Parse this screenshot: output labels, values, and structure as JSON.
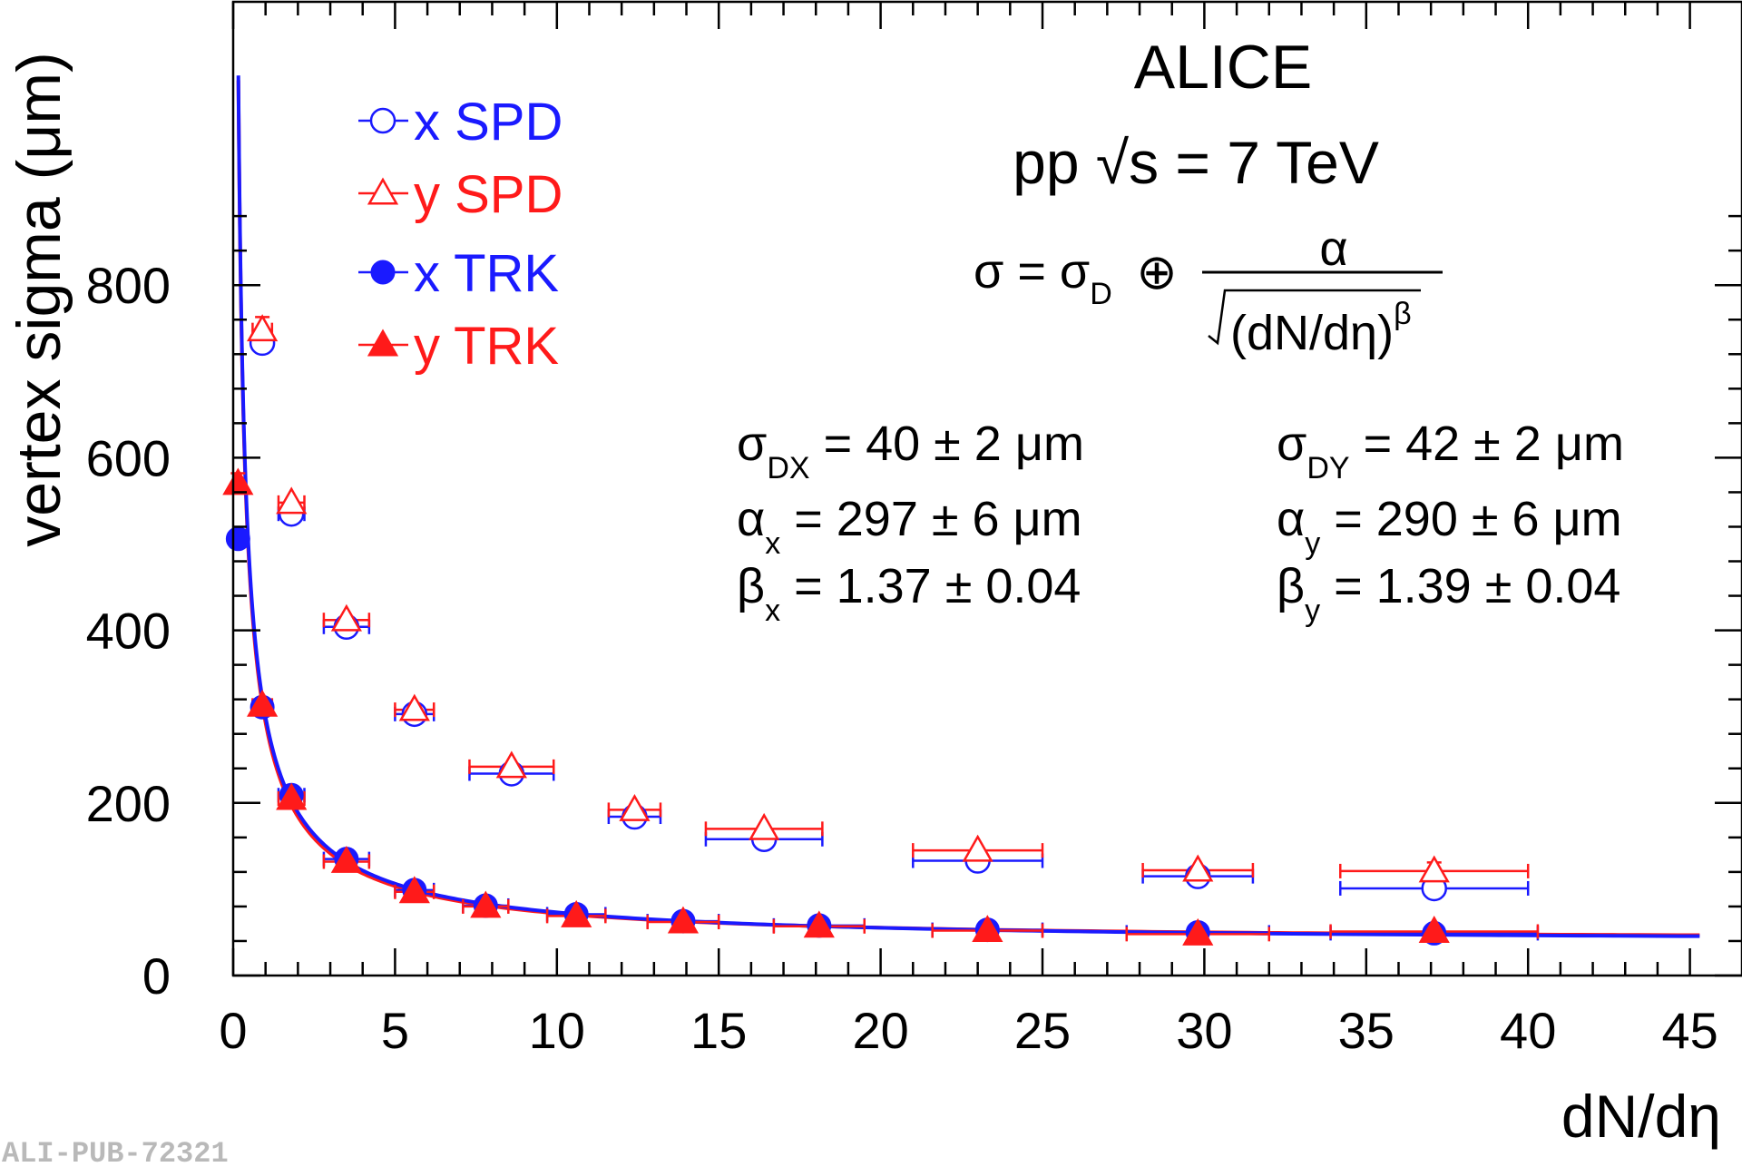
{
  "chart_data": {
    "type": "scatter",
    "title": "ALICE",
    "subtitle": "pp √s = 7 TeV",
    "xlabel": "dN/dη",
    "ylabel": "vertex sigma (μm)",
    "xlim": [
      0,
      46
    ],
    "ylim": [
      0,
      900
    ],
    "xticks": [
      0,
      5,
      10,
      15,
      20,
      25,
      30,
      35,
      40,
      45
    ],
    "yticks": [
      0,
      200,
      400,
      600,
      800
    ],
    "grid": false,
    "legend_position": "top-left",
    "watermark": "ALI-PUB-72321",
    "formula": {
      "lhs": "σ = σ",
      "lhs_sub": "D",
      "oplus": "⊕",
      "numerator": "α",
      "denominator": "(dN/dη)",
      "denominator_sup": "β"
    },
    "params_x": [
      {
        "sym": "σ",
        "sub": "DX",
        "val": "= 40 ± 2 μm"
      },
      {
        "sym": "α",
        "sub": "x",
        "val": "= 297 ± 6 μm"
      },
      {
        "sym": "β",
        "sub": "x",
        "val": "= 1.37 ± 0.04"
      }
    ],
    "params_y": [
      {
        "sym": "σ",
        "sub": "DY",
        "val": "= 42 ± 2 μm"
      },
      {
        "sym": "α",
        "sub": "y",
        "val": "= 290 ± 6 μm"
      },
      {
        "sym": "β",
        "sub": "y",
        "val": "= 1.39 ± 0.04"
      }
    ],
    "series": [
      {
        "name": "x SPD",
        "color": "#1a1aff",
        "marker": "circle-open",
        "points": [
          {
            "x": 0.9,
            "y": 733,
            "xerr": 0.3
          },
          {
            "x": 1.8,
            "y": 535,
            "xerr": 0.4
          },
          {
            "x": 3.5,
            "y": 404,
            "xerr": 0.7
          },
          {
            "x": 5.6,
            "y": 303,
            "xerr": 0.6
          },
          {
            "x": 8.6,
            "y": 234,
            "xerr": 1.3
          },
          {
            "x": 12.4,
            "y": 184,
            "xerr": 0.8
          },
          {
            "x": 16.4,
            "y": 158,
            "xerr": 1.8
          },
          {
            "x": 23.0,
            "y": 133,
            "xerr": 2.0
          },
          {
            "x": 29.8,
            "y": 115,
            "xerr": 1.7
          },
          {
            "x": 37.1,
            "y": 101,
            "xerr": 2.9
          }
        ]
      },
      {
        "name": "y SPD",
        "color": "#ff1a1a",
        "marker": "triangle-open",
        "points": [
          {
            "x": 0.9,
            "y": 748,
            "xerr": 0.3,
            "yerr": 15
          },
          {
            "x": 1.8,
            "y": 548,
            "xerr": 0.4
          },
          {
            "x": 3.5,
            "y": 412,
            "xerr": 0.7
          },
          {
            "x": 5.6,
            "y": 308,
            "xerr": 0.6
          },
          {
            "x": 8.6,
            "y": 242,
            "xerr": 1.3
          },
          {
            "x": 12.4,
            "y": 192,
            "xerr": 0.8
          },
          {
            "x": 16.4,
            "y": 170,
            "xerr": 1.8
          },
          {
            "x": 23.0,
            "y": 145,
            "xerr": 2.0
          },
          {
            "x": 29.8,
            "y": 122,
            "xerr": 1.7
          },
          {
            "x": 37.1,
            "y": 121,
            "xerr": 2.9,
            "yerr": 10
          }
        ]
      },
      {
        "name": "x TRK",
        "color": "#1a1aff",
        "marker": "circle-filled",
        "points": [
          {
            "x": 0.15,
            "y": 506,
            "xerr": 0
          },
          {
            "x": 0.9,
            "y": 311,
            "xerr": 0.3
          },
          {
            "x": 1.8,
            "y": 209,
            "xerr": 0.4
          },
          {
            "x": 3.5,
            "y": 135,
            "xerr": 0.7
          },
          {
            "x": 5.6,
            "y": 99,
            "xerr": 0.6
          },
          {
            "x": 7.8,
            "y": 81,
            "xerr": 0.7
          },
          {
            "x": 10.6,
            "y": 71,
            "xerr": 0.9
          },
          {
            "x": 13.9,
            "y": 63,
            "xerr": 1.1
          },
          {
            "x": 18.1,
            "y": 58,
            "xerr": 1.4
          },
          {
            "x": 23.3,
            "y": 53,
            "xerr": 1.7
          },
          {
            "x": 29.8,
            "y": 50,
            "xerr": 2.2
          },
          {
            "x": 37.1,
            "y": 49,
            "xerr": 3.2
          }
        ]
      },
      {
        "name": "y TRK",
        "color": "#ff1a1a",
        "marker": "triangle-filled",
        "points": [
          {
            "x": 0.15,
            "y": 570,
            "xerr": 0,
            "yerr": 12
          },
          {
            "x": 0.9,
            "y": 313,
            "xerr": 0.3
          },
          {
            "x": 1.8,
            "y": 205,
            "xerr": 0.4
          },
          {
            "x": 3.5,
            "y": 132,
            "xerr": 0.7
          },
          {
            "x": 5.6,
            "y": 97,
            "xerr": 0.6
          },
          {
            "x": 7.8,
            "y": 80,
            "xerr": 0.7
          },
          {
            "x": 10.6,
            "y": 69,
            "xerr": 0.9
          },
          {
            "x": 13.9,
            "y": 62,
            "xerr": 1.1
          },
          {
            "x": 18.1,
            "y": 57,
            "xerr": 1.4
          },
          {
            "x": 23.3,
            "y": 52,
            "xerr": 1.7
          },
          {
            "x": 29.8,
            "y": 48,
            "xerr": 2.2
          },
          {
            "x": 37.1,
            "y": 51,
            "xerr": 3.2
          }
        ]
      }
    ],
    "fits": [
      {
        "color": "#ff1a1a",
        "sigmaD": 42,
        "alpha": 290,
        "beta": 1.39,
        "xmin": 0.16,
        "xmax": 45.3
      },
      {
        "color": "#1a1aff",
        "sigmaD": 40,
        "alpha": 297,
        "beta": 1.37,
        "xmin": 0.16,
        "xmax": 45.3
      }
    ]
  }
}
